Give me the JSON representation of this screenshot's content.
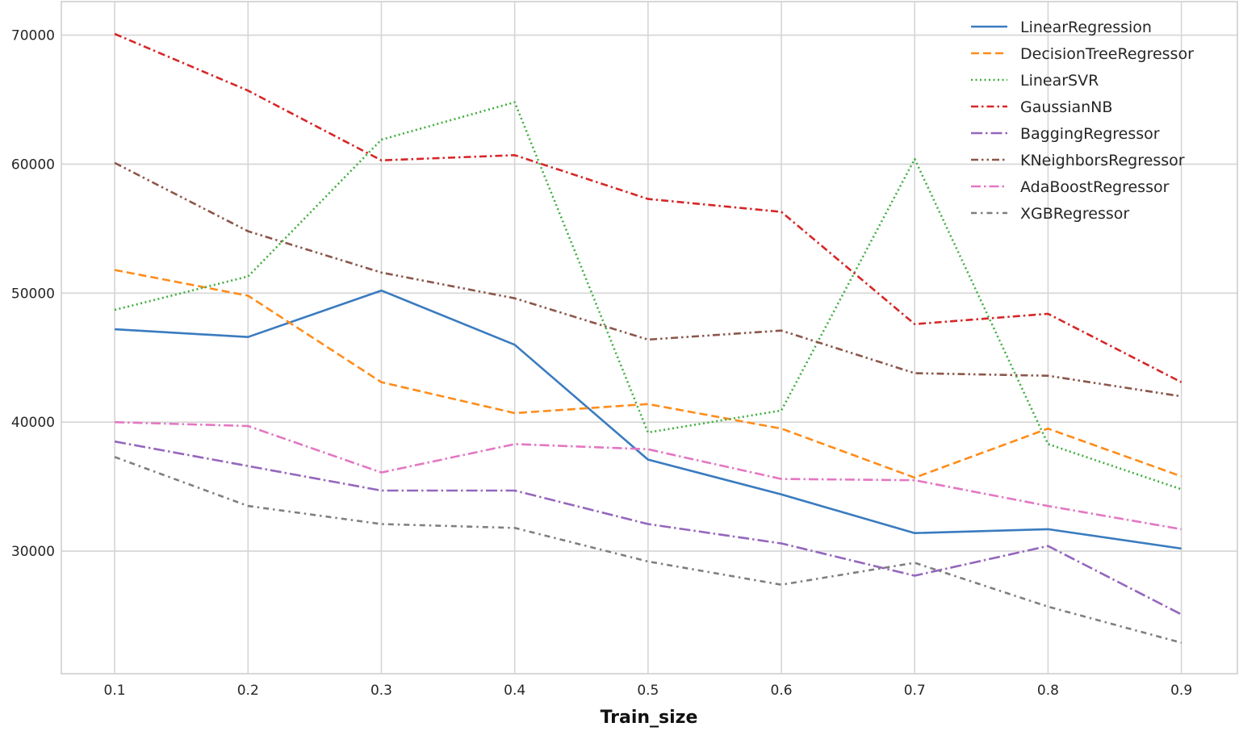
{
  "chart_data": {
    "type": "line",
    "title": "",
    "xlabel": "Train_size",
    "ylabel": "",
    "x": [
      0.1,
      0.2,
      0.3,
      0.4,
      0.5,
      0.6,
      0.7,
      0.8,
      0.9
    ],
    "x_tick_labels": [
      "0.1",
      "0.2",
      "0.3",
      "0.4",
      "0.5",
      "0.6",
      "0.7",
      "0.8",
      "0.9"
    ],
    "xlim": [
      0.06,
      0.942
    ],
    "y_ticks": [
      30000,
      40000,
      50000,
      60000,
      70000
    ],
    "y_tick_labels": [
      "30000",
      "40000",
      "50000",
      "60000",
      "70000"
    ],
    "ylim": [
      20500,
      72600
    ],
    "grid": true,
    "legend_position": "top-right",
    "series": [
      {
        "name": "LinearRegression",
        "color": "#3a7bbf",
        "dash": "solid",
        "values": [
          47200,
          46600,
          50200,
          46000,
          37100,
          34400,
          31400,
          31700,
          30200
        ]
      },
      {
        "name": "DecisionTreeRegressor",
        "color": "#ff8c1a",
        "dash": "dashed",
        "values": [
          51800,
          49800,
          43100,
          40700,
          41400,
          39500,
          35700,
          39500,
          35800
        ]
      },
      {
        "name": "LinearSVR",
        "color": "#3fae3f",
        "dash": "dotted",
        "values": [
          48700,
          51300,
          61900,
          64800,
          39200,
          40900,
          60400,
          38300,
          34800
        ]
      },
      {
        "name": "GaussianNB",
        "color": "#d62728",
        "dash": "dashdot",
        "values": [
          70100,
          65700,
          60300,
          60700,
          57300,
          56300,
          47600,
          48400,
          43100
        ]
      },
      {
        "name": "BaggingRegressor",
        "color": "#9467bd",
        "dash": "longdashdot",
        "values": [
          38500,
          36600,
          34700,
          34700,
          32100,
          30600,
          28100,
          30400,
          25100
        ]
      },
      {
        "name": "KNeighborsRegressor",
        "color": "#8c564b",
        "dash": "dashdotdot",
        "values": [
          60100,
          54800,
          51600,
          49600,
          46400,
          47100,
          43800,
          43600,
          42000
        ]
      },
      {
        "name": "AdaBoostRegressor",
        "color": "#e377c2",
        "dash": "dashdot2",
        "values": [
          40000,
          39700,
          36100,
          38300,
          37900,
          35600,
          35500,
          33500,
          31700
        ]
      },
      {
        "name": "XGBRegressor",
        "color": "#7f7f7f",
        "dash": "dashdotsparse",
        "values": [
          37300,
          33500,
          32100,
          31800,
          29200,
          27400,
          29100,
          25700,
          22900
        ]
      }
    ]
  }
}
